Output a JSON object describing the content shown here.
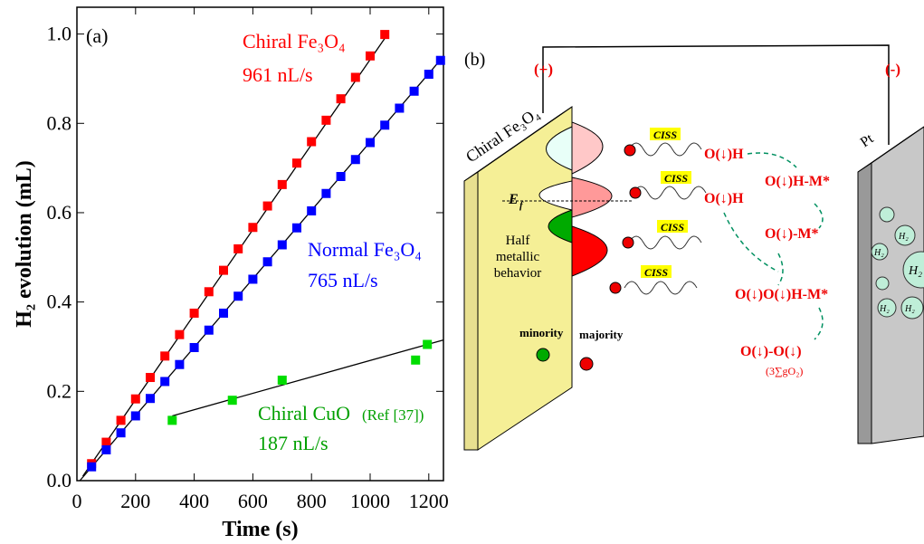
{
  "chart_data": {
    "type": "scatter",
    "xlabel": "Time (s)",
    "ylabel": "H₂ evolution (mL)",
    "xlim": [
      0,
      1250
    ],
    "xticks": [
      0,
      200,
      400,
      600,
      800,
      1000,
      1200
    ],
    "ylim": [
      0,
      1.06
    ],
    "yticks": [
      {
        "value": 0,
        "label": "0.0"
      },
      0.2,
      0.4,
      0.6,
      0.8,
      {
        "value": 1,
        "label": "1.0"
      }
    ],
    "series": [
      {
        "name": "Chiral Fe₃O₄",
        "color": "#ff0000",
        "x": [
          50,
          100,
          150,
          200,
          250,
          300,
          350,
          400,
          450,
          500,
          550,
          600,
          650,
          700,
          750,
          800,
          850,
          900,
          950,
          1000,
          1050
        ],
        "values": [
          0.038,
          0.086,
          0.135,
          0.183,
          0.231,
          0.279,
          0.327,
          0.375,
          0.423,
          0.471,
          0.519,
          0.567,
          0.615,
          0.663,
          0.711,
          0.759,
          0.807,
          0.855,
          0.903,
          0.951,
          0.999
        ]
      },
      {
        "name": "Normal Fe₃O₄",
        "color": "#0000ff",
        "x": [
          50,
          100,
          150,
          200,
          250,
          300,
          350,
          400,
          450,
          500,
          550,
          600,
          650,
          700,
          750,
          800,
          850,
          900,
          950,
          1000,
          1050,
          1100,
          1150,
          1200,
          1240
        ],
        "values": [
          0.031,
          0.069,
          0.107,
          0.145,
          0.184,
          0.222,
          0.26,
          0.298,
          0.337,
          0.375,
          0.413,
          0.451,
          0.49,
          0.528,
          0.566,
          0.604,
          0.643,
          0.681,
          0.719,
          0.757,
          0.796,
          0.834,
          0.872,
          0.91,
          0.941
        ]
      },
      {
        "name": "Chiral CuO",
        "color": "#00dd00",
        "x": [
          325,
          530,
          700,
          1155,
          1195
        ],
        "values": [
          0.135,
          0.18,
          0.225,
          0.27,
          0.305
        ]
      }
    ],
    "fits": [
      {
        "color": "#000000",
        "x": [
          20,
          1060
        ],
        "values": [
          0.01,
          1.0
        ]
      },
      {
        "color": "#000000",
        "x": [
          10,
          1250
        ],
        "values": [
          0,
          0.95
        ]
      },
      {
        "color": "#000000",
        "x": [
          325,
          1250
        ],
        "values": [
          0.145,
          0.315
        ]
      }
    ],
    "annotations": {
      "panel": "(a)",
      "rate_chiral": "961 nL/s",
      "rate_normal": "765 nL/s",
      "ref": "(Ref [37])",
      "rate_cuo": "187 nL/s"
    }
  },
  "diagram": {
    "panel": "(b)",
    "plus": "(+)",
    "minus": "(-)",
    "anode": "Chiral Fe₃O₄",
    "cathode": "Pt",
    "ciss": [
      "CISS",
      "CISS",
      "CISS",
      "CISS"
    ],
    "fermi": "E",
    "fermi_sub": "f",
    "half": [
      "Half",
      "metallic",
      "behavior"
    ],
    "minority": "minority",
    "majority": "majority",
    "steps": [
      "O(↓)H",
      "O(↓)H",
      "O(↓)H-M*",
      "O(↓)-M*",
      "O(↓)O(↓)H-M*",
      "O(↓)-O(↓)",
      "(3∑gO₂)"
    ],
    "bubbles": [
      "H₂",
      "H₂",
      "H₂",
      "H₂",
      "H₂"
    ]
  }
}
